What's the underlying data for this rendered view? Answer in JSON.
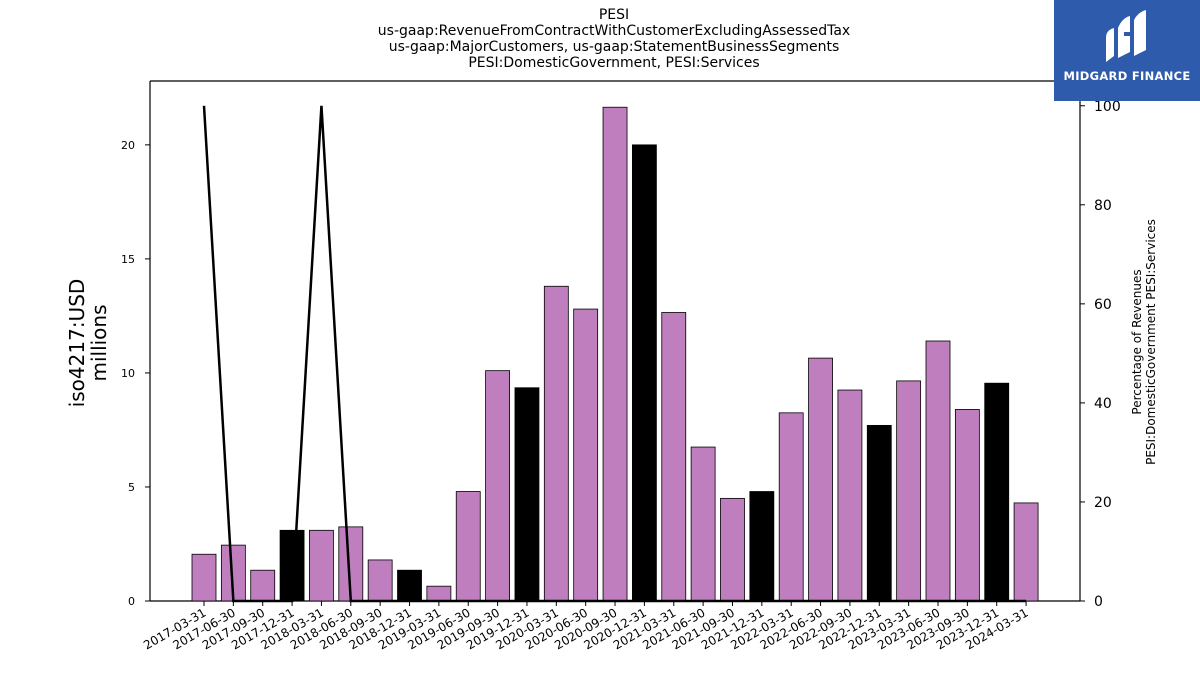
{
  "title_lines": [
    "PESI",
    "us-gaap:RevenueFromContractWithCustomerExcludingAssessedTax",
    "us-gaap:MajorCustomers, us-gaap:StatementBusinessSegments",
    "PESI:DomesticGovernment, PESI:Services"
  ],
  "logo": {
    "text": "MIDGARD FINANCE",
    "bg_color": "#2e5bab",
    "icon": "midgard-logo-icon"
  },
  "chart_data": {
    "type": "bar",
    "categories": [
      "2017-03-31",
      "2017-06-30",
      "2017-09-30",
      "2017-12-31",
      "2018-03-31",
      "2018-06-30",
      "2018-09-30",
      "2018-12-31",
      "2019-03-31",
      "2019-06-30",
      "2019-09-30",
      "2019-12-31",
      "2020-03-31",
      "2020-06-30",
      "2020-09-30",
      "2020-12-31",
      "2021-03-31",
      "2021-06-30",
      "2021-09-30",
      "2021-12-31",
      "2022-03-31",
      "2022-06-30",
      "2022-09-30",
      "2022-12-31",
      "2023-03-31",
      "2023-06-30",
      "2023-09-30",
      "2023-12-31",
      "2024-03-31"
    ],
    "series": [
      {
        "axis": "left",
        "type": "bar",
        "values": [
          2.05,
          2.45,
          1.35,
          3.1,
          3.1,
          3.25,
          1.8,
          1.35,
          0.65,
          4.8,
          10.1,
          9.35,
          13.8,
          12.8,
          21.65,
          20.0,
          12.65,
          6.75,
          4.5,
          4.8,
          8.25,
          10.65,
          9.25,
          7.7,
          9.65,
          11.4,
          8.4,
          9.55,
          4.3
        ],
        "highlight": [
          false,
          false,
          false,
          true,
          false,
          false,
          false,
          true,
          false,
          false,
          false,
          true,
          false,
          false,
          false,
          true,
          false,
          false,
          false,
          true,
          false,
          false,
          false,
          true,
          false,
          false,
          false,
          true,
          false
        ],
        "color": "#bf7fbf",
        "highlight_color": "#000000"
      },
      {
        "axis": "right",
        "type": "line",
        "values": [
          100,
          0,
          0,
          0,
          100,
          0,
          0,
          0,
          0,
          0,
          0,
          0,
          0,
          0,
          0,
          0,
          0,
          0,
          0,
          0,
          0,
          0,
          0,
          0,
          0,
          0,
          0,
          0,
          0
        ],
        "color": "#000000"
      }
    ],
    "ylabel": "iso4217:USD\nmillions",
    "y2label": "Percentage of Revenues\nPESI:DomesticGovernment PESI:Services",
    "ylim": [
      0,
      22.8
    ],
    "y2lim": [
      0,
      105
    ],
    "yticks": [
      0,
      5,
      10,
      15,
      20
    ],
    "y2ticks": [
      0,
      20,
      40,
      60,
      80,
      100
    ],
    "grid": false
  }
}
